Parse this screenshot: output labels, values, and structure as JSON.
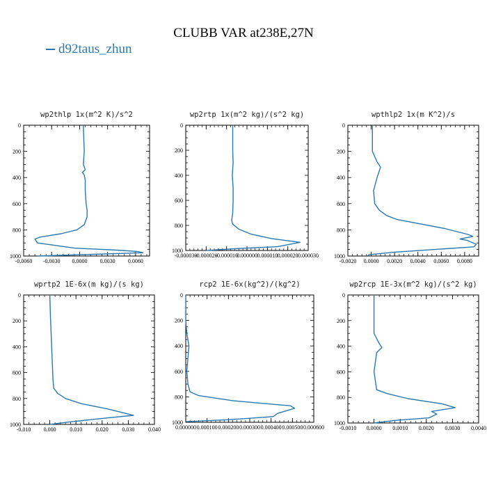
{
  "header": {
    "title": "CLUBB VAR at238E,27N",
    "legend_label": "d92taus_zhun",
    "line_color": "#2a78b0"
  },
  "chart_data": [
    {
      "type": "line",
      "title": "wp2thlp   1x(m^2 K)/s^2",
      "xlim": [
        -0.006,
        0.0075
      ],
      "ylim": [
        1000,
        0
      ],
      "xticks": [
        -0.006,
        -0.003,
        0.0,
        0.003,
        0.006
      ],
      "xticklabels": [
        "-0.0060",
        "-0.0030",
        "0.0000",
        "0.0030",
        "0.0060"
      ],
      "yticks": [
        0,
        200,
        400,
        600,
        800,
        1000
      ],
      "series": [
        {
          "x": [
            -0.0045,
            0.0068,
            0.0062,
            0.004,
            -0.0005,
            -0.0045,
            -0.0048,
            -0.0042,
            -0.002,
            -0.0003,
            0.0005,
            0.0008,
            0.0008,
            0.0007,
            0.0006,
            0.0006,
            0.0005,
            0.0003,
            0.0006,
            0.0004,
            0.0005,
            0.0004
          ],
          "y": [
            1000,
            975,
            965,
            955,
            940,
            900,
            870,
            855,
            830,
            800,
            760,
            700,
            650,
            600,
            500,
            420,
            380,
            360,
            340,
            300,
            200,
            0
          ]
        }
      ]
    },
    {
      "type": "line",
      "title": "wp2rtp   1x(m^2 kg)/(s^2 kg)",
      "xlim": [
        -3e-05,
        3e-05
      ],
      "ylim": [
        1000,
        0
      ],
      "xticks": [
        -3e-05,
        -2e-05,
        -1e-05,
        0.0,
        1e-05,
        2e-05,
        3e-05
      ],
      "xticklabels": [
        "-0.000030",
        "-0.000020",
        "-0.000010",
        "0.000000",
        "0.000010",
        "0.000020",
        "0.000030"
      ],
      "yticks": [
        0,
        200,
        400,
        600,
        800,
        1000
      ],
      "series": [
        {
          "x": [
            -2e-05,
            -5e-06,
            1.5e-05,
            2.6e-05,
            1.2e-05,
            2e-06,
            -4e-06,
            -7e-06,
            -7.5e-06,
            -7e-06,
            -6.8e-06,
            -6.8e-06,
            -7.2e-06,
            -6.8e-06,
            -7e-06,
            -7e-06
          ],
          "y": [
            1000,
            985,
            970,
            935,
            905,
            870,
            830,
            790,
            760,
            700,
            600,
            500,
            400,
            300,
            200,
            0
          ]
        }
      ]
    },
    {
      "type": "line",
      "title": "wpthlp2   1x(m K^2)/s",
      "xlim": [
        -0.002,
        0.0092
      ],
      "ylim": [
        1000,
        0
      ],
      "xticks": [
        -0.002,
        0.0,
        0.002,
        0.004,
        0.006,
        0.008
      ],
      "xticklabels": [
        "-0.0020",
        "0.0000",
        "0.0020",
        "0.0040",
        "0.0060",
        "0.0080"
      ],
      "yticks": [
        0,
        200,
        400,
        600,
        800,
        1000
      ],
      "series": [
        {
          "x": [
            -0.0003,
            -0.0002,
            0.002,
            0.0088,
            0.009,
            0.0082,
            0.0076,
            0.0087,
            0.0083,
            0.0063,
            0.0022,
            0.0013,
            0.0007,
            0.0003,
            0.0002,
            0.0005,
            0.0008,
            0.0005,
            0.0001,
            0.0001
          ],
          "y": [
            1000,
            990,
            970,
            930,
            910,
            880,
            870,
            850,
            835,
            790,
            720,
            690,
            650,
            600,
            500,
            400,
            320,
            280,
            200,
            0
          ]
        }
      ]
    },
    {
      "type": "line",
      "title": "wprtp2   1E-6x(m kg)/(s kg)",
      "xlim": [
        -0.01,
        0.04
      ],
      "ylim": [
        1000,
        0
      ],
      "xticks": [
        -0.01,
        0.0,
        0.01,
        0.02,
        0.03,
        0.04
      ],
      "xticklabels": [
        "-0.010",
        "0.000",
        "0.010",
        "0.020",
        "0.030",
        "0.040"
      ],
      "yticks": [
        0,
        200,
        400,
        600,
        800,
        1000
      ],
      "series": [
        {
          "x": [
            0.0,
            0.008,
            0.022,
            0.032,
            0.029,
            0.022,
            0.012,
            0.006,
            0.003,
            0.0015,
            0.0012,
            0.001,
            0.0008,
            0.0005,
            0.0002,
            0.0
          ],
          "y": [
            1000,
            980,
            950,
            930,
            915,
            880,
            840,
            800,
            760,
            720,
            650,
            550,
            450,
            300,
            150,
            0
          ]
        }
      ]
    },
    {
      "type": "line",
      "title": "rcp2   1E-6x(kg^2)/(kg^2)",
      "xlim": [
        0.0,
        0.0006
      ],
      "ylim": [
        1000,
        0
      ],
      "xticks": [
        0.0,
        0.0001,
        0.0002,
        0.0003,
        0.0004,
        0.0005,
        0.0006
      ],
      "xticklabels": [
        "0.000000",
        "0.000100",
        "0.000200",
        "0.000300",
        "0.000400",
        "0.000500",
        "0.000600"
      ],
      "yticks": [
        0,
        200,
        400,
        600,
        800,
        1000
      ],
      "series": [
        {
          "x": [
            0.0,
            0.0002,
            0.00041,
            0.00043,
            0.00051,
            0.00049,
            0.00042,
            0.00022,
            6e-05,
            2e-05,
            1e-05,
            5e-06,
            1.5e-05,
            5e-06,
            0.0,
            0.0
          ],
          "y": [
            995,
            980,
            955,
            930,
            890,
            870,
            860,
            830,
            790,
            760,
            700,
            600,
            400,
            300,
            200,
            0
          ]
        }
      ]
    },
    {
      "type": "line",
      "title": "wp2rcp   1E-3x(m^2 kg)/(s^2 kg)",
      "xlim": [
        -0.001,
        0.004
      ],
      "ylim": [
        1000,
        0
      ],
      "xticks": [
        -0.001,
        0.0,
        0.001,
        0.002,
        0.003,
        0.004
      ],
      "xticklabels": [
        "-0.0010",
        "0.0000",
        "0.0010",
        "0.0020",
        "0.0030",
        "0.0040"
      ],
      "yticks": [
        0,
        200,
        400,
        600,
        800,
        1000
      ],
      "series": [
        {
          "x": [
            0.0,
            0.0008,
            0.0021,
            0.0024,
            0.0022,
            0.0028,
            0.0031,
            0.0026,
            0.0013,
            0.0005,
            0.0001,
            0.0,
            0.0001,
            0.0003,
            0.0002,
            0.0,
            0.0
          ],
          "y": [
            1000,
            980,
            960,
            930,
            910,
            890,
            880,
            850,
            810,
            770,
            740,
            600,
            450,
            410,
            380,
            300,
            0
          ]
        }
      ]
    }
  ]
}
